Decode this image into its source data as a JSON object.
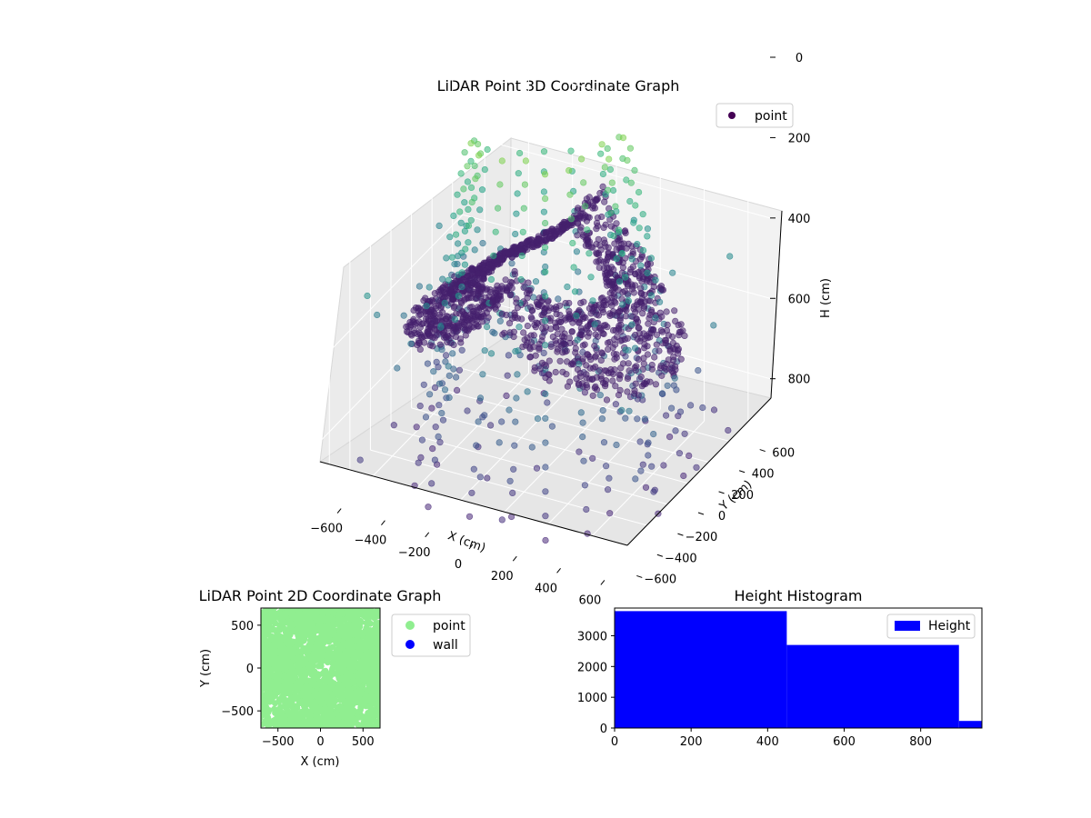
{
  "figure": {
    "background": "#ffffff"
  },
  "chart_data": [
    {
      "type": "scatter3d",
      "title": "LiDAR Point 3D Coordinate Graph",
      "xlabel": "X (cm)",
      "ylabel": "Y (cm)",
      "zlabel": "H (cm)",
      "xlim": [
        -700,
        700
      ],
      "ylim": [
        -700,
        700
      ],
      "zlim": [
        950,
        0
      ],
      "xticks": [
        "−600",
        "−400",
        "−200",
        "0",
        "200",
        "400",
        "600"
      ],
      "yticks": [
        "−600",
        "−400",
        "−200",
        "0",
        "200",
        "400",
        "600"
      ],
      "zticks": [
        "0",
        "200",
        "400",
        "600",
        "800"
      ],
      "xtick_values": [
        -600,
        -400,
        -200,
        0,
        200,
        400,
        600
      ],
      "ytick_values": [
        -600,
        -400,
        -200,
        0,
        200,
        400,
        600
      ],
      "ztick_values": [
        0,
        200,
        400,
        600,
        800
      ],
      "legend": [
        "point"
      ],
      "legend_position": "top-right",
      "colormap": "viridis",
      "series": [
        {
          "name": "point",
          "color": "#440154",
          "description": "dense ring of LiDAR returns at ~350-700 cm height plus vertical scan lines"
        }
      ]
    },
    {
      "type": "scatter",
      "title": "LiDAR Point 2D Coordinate Graph",
      "xlabel": "X (cm)",
      "ylabel": "Y (cm)",
      "xlim": [
        -700,
        700
      ],
      "ylim": [
        -700,
        700
      ],
      "xticks": [
        "−500",
        "0",
        "500"
      ],
      "yticks": [
        "500",
        "0",
        "−500"
      ],
      "xtick_values": [
        -500,
        0,
        500
      ],
      "ytick_values": [
        500,
        0,
        -500
      ],
      "legend": [
        "point",
        "wall"
      ],
      "legend_position": "outside-right",
      "series": [
        {
          "name": "point",
          "color": "#90ee90"
        },
        {
          "name": "wall",
          "color": "#0000ff",
          "values": []
        }
      ]
    },
    {
      "type": "histogram",
      "title": "Height Histogram",
      "xlim": [
        0,
        960
      ],
      "ylim": [
        0,
        3900
      ],
      "xticks": [
        "0",
        "200",
        "400",
        "600",
        "800"
      ],
      "yticks": [
        "0",
        "1000",
        "2000",
        "3000"
      ],
      "xtick_values": [
        0,
        200,
        400,
        600,
        800
      ],
      "ytick_values": [
        0,
        1000,
        2000,
        3000
      ],
      "legend": [
        "Height"
      ],
      "legend_position": "top-right",
      "color": "#0000ff",
      "bins": [
        {
          "start": 0,
          "end": 450,
          "count": 3800
        },
        {
          "start": 450,
          "end": 900,
          "count": 2700
        },
        {
          "start": 900,
          "end": 960,
          "count": 230
        }
      ]
    }
  ]
}
